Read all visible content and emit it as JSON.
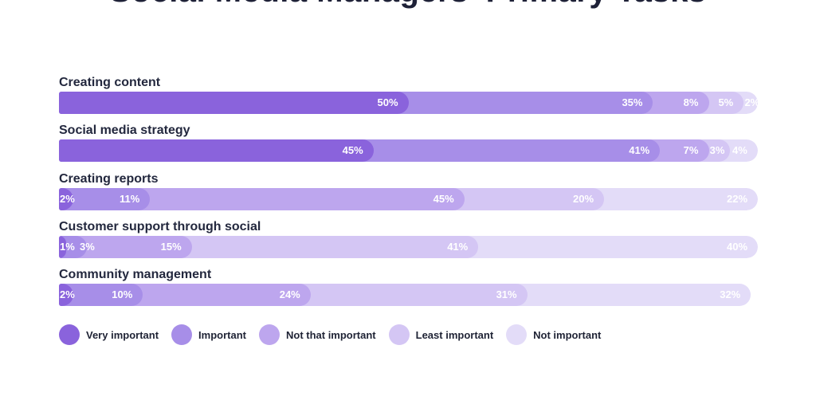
{
  "title": "Social Media Managers' Primary Tasks",
  "colors": {
    "title_text": "#1e2137",
    "category_text": "#23283e",
    "value_text": "#ffffff",
    "background": "#ffffff"
  },
  "chart_data": {
    "type": "bar",
    "variant": "horizontal-stacked",
    "unit": "%",
    "title": "Social Media Managers' Primary Tasks",
    "bar_total": 100,
    "legend_position": "bottom",
    "grid": false,
    "categories": [
      "Creating content",
      "Social media strategy",
      "Creating reports",
      "Customer support through social",
      "Community management"
    ],
    "series": [
      {
        "name": "Very important",
        "color": "#8a63dc",
        "values": [
          50,
          45,
          2,
          1,
          2
        ]
      },
      {
        "name": "Important",
        "color": "#a78ee8",
        "values": [
          35,
          41,
          11,
          3,
          10
        ]
      },
      {
        "name": "Not that important",
        "color": "#bda6ee",
        "values": [
          8,
          7,
          45,
          15,
          24
        ]
      },
      {
        "name": "Least important",
        "color": "#d4c6f4",
        "values": [
          5,
          3,
          20,
          41,
          31
        ]
      },
      {
        "name": "Not important",
        "color": "#e3dcf8",
        "values": [
          2,
          4,
          22,
          40,
          32
        ]
      }
    ]
  }
}
